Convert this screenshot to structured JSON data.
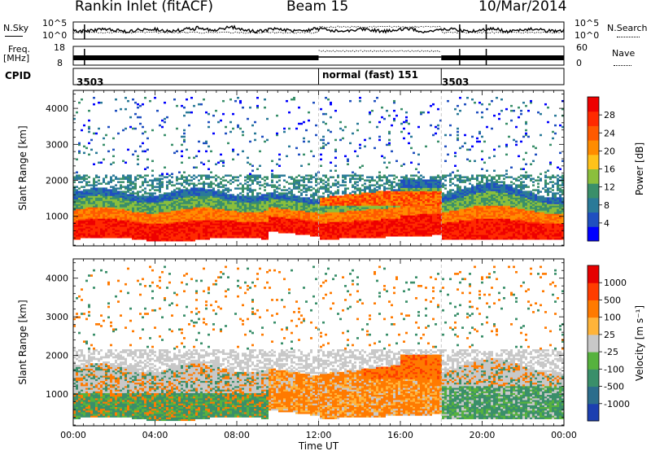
{
  "header": {
    "station": "Rankin Inlet (fitACF)",
    "beam": "Beam 15",
    "date": "10/Mar/2014"
  },
  "top_panels": {
    "nsky_label": "N.Sky",
    "nsky_ticks": [
      "10^5",
      "10^0"
    ],
    "nsearch_label": "N.Search",
    "nsearch_ticks": [
      "10^5",
      "10^0"
    ],
    "freq_label": "Freq.",
    "freq_unit": "[MHz]",
    "freq_ticks": [
      "18",
      "8"
    ],
    "nave_label": "Nave",
    "nave_ticks": [
      "60",
      "0"
    ],
    "cpid_label": "CPID",
    "cpid_segments": [
      {
        "text": "3503",
        "start_h": 0
      },
      {
        "text": "normal (fast) 151",
        "start_h": 12
      },
      {
        "text": "3503",
        "start_h": 18
      }
    ]
  },
  "chart_data": [
    {
      "type": "heatmap",
      "name": "power",
      "ylabel": "Slant Range [km]",
      "ylim": [
        180,
        4500
      ],
      "yticks": [
        1000,
        2000,
        3000,
        4000
      ],
      "xlim": [
        0,
        24
      ],
      "colorbar": {
        "label": "Power [dB]",
        "ticks": [
          "28",
          "24",
          "20",
          "16",
          "12",
          "8",
          "4"
        ],
        "colors": [
          "#0000ff",
          "#1f4fc0",
          "#2a7a98",
          "#3a8f6a",
          "#8bbf3c",
          "#ffc21a",
          "#ff8c00",
          "#ff5a00",
          "#ff2a00",
          "#ee0000"
        ]
      }
    },
    {
      "type": "heatmap",
      "name": "velocity",
      "ylabel": "Slant Range [km]",
      "ylim": [
        180,
        4500
      ],
      "yticks": [
        1000,
        2000,
        3000,
        4000
      ],
      "xlim": [
        0,
        24
      ],
      "colorbar": {
        "label": "Velocity [m s⁻¹]",
        "ticks": [
          "1000",
          "500",
          "100",
          "25",
          "-25",
          "-100",
          "-500",
          "-1000"
        ],
        "colors": [
          "#1c3fb0",
          "#2c6d8c",
          "#3a8f6a",
          "#56b23e",
          "#c8c8c8",
          "#ffb43a",
          "#ff7a00",
          "#ff3d00",
          "#e60000"
        ]
      }
    }
  ],
  "xaxis": {
    "label": "Time UT",
    "ticks": [
      "00:00",
      "04:00",
      "08:00",
      "12:00",
      "16:00",
      "20:00",
      "00:00"
    ],
    "tick_hours": [
      0,
      4,
      8,
      12,
      16,
      20,
      24
    ]
  },
  "colors": {
    "power_strong": "#ff1a00",
    "power_mid": "#ff8c00",
    "power_low": "#3a8f6a",
    "velocity_green": "#3a8f6a",
    "velocity_grey": "#c8c8c8",
    "velocity_orange": "#ff7a00"
  }
}
